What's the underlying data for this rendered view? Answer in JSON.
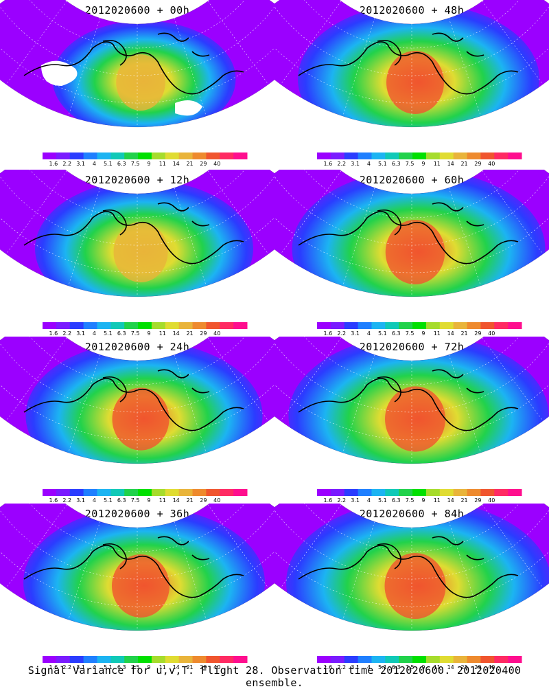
{
  "figure": {
    "caption": "Signal Variance for u,v,T. Flight 28. Observation time 2012020600. 2012020400 ensemble."
  },
  "colorbar": {
    "labels": [
      "1.6",
      "2.2",
      "3.1",
      "4",
      "5.1",
      "6.3",
      "7.5",
      "9",
      "11",
      "14",
      "21",
      "29",
      "40"
    ],
    "colors": [
      "#9b00ff",
      "#7a1bff",
      "#2b3cff",
      "#1f7fff",
      "#1cb4f2",
      "#10c9b7",
      "#21d24b",
      "#00e000",
      "#a6dc2c",
      "#e0dc32",
      "#e9b43a",
      "#ee8a2e",
      "#f0552e",
      "#ff2a63",
      "#ff0e8e"
    ]
  },
  "panels": [
    {
      "title": "2012020600 + 00h",
      "hotspot": 0.55
    },
    {
      "title": "2012020600 + 48h",
      "hotspot": 0.8
    },
    {
      "title": "2012020600 + 12h",
      "hotspot": 0.7
    },
    {
      "title": "2012020600 + 60h",
      "hotspot": 0.85
    },
    {
      "title": "2012020600 + 24h",
      "hotspot": 0.78
    },
    {
      "title": "2012020600 + 72h",
      "hotspot": 0.88
    },
    {
      "title": "2012020600 + 36h",
      "hotspot": 0.8
    },
    {
      "title": "2012020600 + 84h",
      "hotspot": 0.9
    }
  ],
  "chart_data": {
    "type": "heatmap",
    "title": "Signal Variance for u,v,T. Flight 28. Observation time 2012020600. 2012020400 ensemble.",
    "panels": [
      "2012020600 + 00h",
      "2012020600 + 12h",
      "2012020600 + 24h",
      "2012020600 + 36h",
      "2012020600 + 48h",
      "2012020600 + 60h",
      "2012020600 + 72h",
      "2012020600 + 84h"
    ],
    "colorbar_levels": [
      1.6,
      2.2,
      3.1,
      4,
      5.1,
      6.3,
      7.5,
      9,
      11,
      14,
      21,
      29,
      40
    ]
  }
}
